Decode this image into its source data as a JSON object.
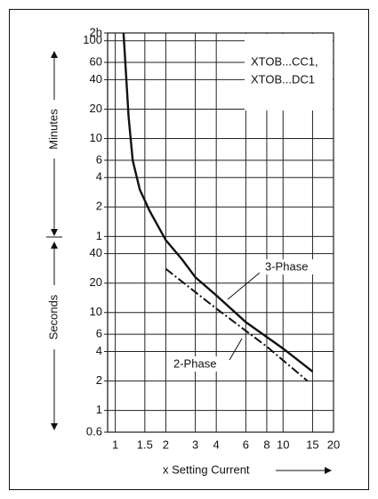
{
  "chart_data": {
    "type": "line",
    "xlabel": "x Setting Current",
    "ylabel_upper": "Minutes",
    "ylabel_lower": "Seconds",
    "box_text": [
      "XTOB...CC1,",
      "XTOB...DC1"
    ],
    "xscale": "log",
    "yscale": "log",
    "grid": true,
    "xlim": [
      0.9,
      20
    ],
    "ylim": [
      0.6,
      7200
    ],
    "xticks": [
      1,
      1.5,
      2,
      3,
      4,
      6,
      8,
      10,
      15,
      20
    ],
    "yticks": [
      {
        "value": 7200,
        "label": "2h"
      },
      {
        "value": 6000,
        "label": "100"
      },
      {
        "value": 3600,
        "label": "60"
      },
      {
        "value": 2400,
        "label": "40"
      },
      {
        "value": 1200,
        "label": "20"
      },
      {
        "value": 600,
        "label": "10"
      },
      {
        "value": 360,
        "label": "6"
      },
      {
        "value": 240,
        "label": "4"
      },
      {
        "value": 120,
        "label": "2"
      },
      {
        "value": 60,
        "label": "1"
      },
      40,
      20,
      10,
      6,
      4,
      2,
      1,
      0.6
    ],
    "series": [
      {
        "name": "3-Phase",
        "color": "#111111",
        "dash": "solid",
        "x": [
          1.12,
          1.2,
          1.27,
          1.4,
          1.6,
          2,
          2.5,
          3,
          4,
          6,
          10,
          15
        ],
        "values": [
          7200,
          1000,
          360,
          180,
          110,
          55,
          35,
          23,
          15,
          8,
          4.3,
          2.5
        ]
      },
      {
        "name": "2-Phase",
        "color": "#111111",
        "dash": "dashdot",
        "x": [
          2,
          4,
          8,
          14
        ],
        "values": [
          28,
          11,
          4.5,
          2
        ]
      }
    ]
  }
}
